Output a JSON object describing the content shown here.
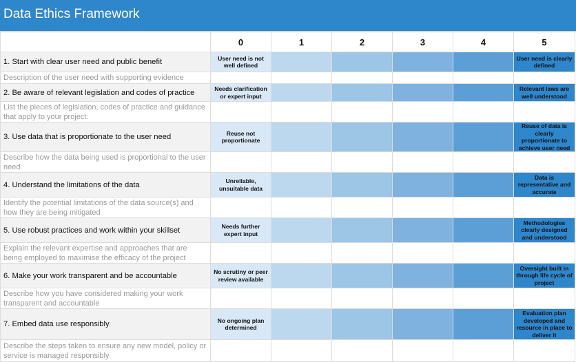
{
  "title": "Data Ethics Framework",
  "levels": [
    "0",
    "1",
    "2",
    "3",
    "4",
    "5"
  ],
  "rows": [
    {
      "criterion": "1. Start with clear user need and public benefit",
      "description": "Description of the user need with supporting evidence",
      "level0_note": "User need is not well defined",
      "level5_note": "User need is clearly defined"
    },
    {
      "criterion": "2. Be aware of relevant legislation and codes of practice",
      "description": "List the pieces of legislation, codes of practice and guidance that apply to your project.",
      "level0_note": "Needs clarification or expert input",
      "level5_note": "Relevant laws are well understood"
    },
    {
      "criterion": "3. Use data that is proportionate to the user need",
      "description": "Describe how the data being used is proportional to the user need",
      "level0_note": "Reuse not proportionate",
      "level5_note": "Reuse of data is clearly proportionate to achieve user need"
    },
    {
      "criterion": "4. Understand the limitations of the data",
      "description": "Identify the potential limitations of the data source(s) and how they are being mitigated",
      "level0_note": "Unreliable, unsuitable data",
      "level5_note": "Data is representative and accurate"
    },
    {
      "criterion": "5. Use robust practices and work within your skillset",
      "description": "Explain the relevant expertise and approaches that are being employed to maximise the efficacy of the project",
      "level0_note": "Needs further expert input",
      "level5_note": "Methodologies clearly designed and understood"
    },
    {
      "criterion": "6. Make your work transparent and be accountable",
      "description": "Describe how you have considered making your work transparent and accountable",
      "level0_note": "No scrutiny or peer review available",
      "level5_note": "Oversight built in through life cycle of project"
    },
    {
      "criterion": "7. Embed data use responsibly",
      "description": "Describe the steps taken to ensure any new model, policy or service is managed responsibly",
      "level0_note": "No ongoing plan determined",
      "level5_note": "Evaluation plan developed and resource in place to deliver it"
    }
  ],
  "colors": {
    "title_bg": "#2e86cb",
    "level_shades": [
      "#d9e8f6",
      "#bcd8ef",
      "#9cc5e6",
      "#7fb2de",
      "#5c9fd6",
      "#2e86cb"
    ]
  }
}
